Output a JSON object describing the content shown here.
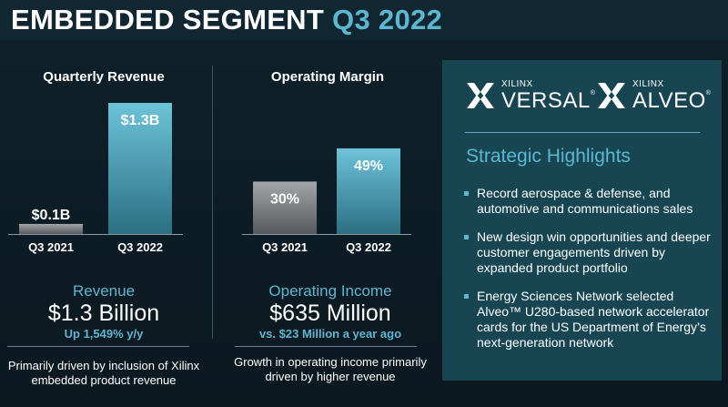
{
  "title": {
    "main": "EMBEDDED SEGMENT",
    "accent": "Q3 2022"
  },
  "colors": {
    "accent": "#5bb8d0",
    "bar_prior": "#8a8e92",
    "bar_current": "#5bb8d0",
    "panel": "#174552"
  },
  "chart_data": [
    {
      "type": "bar",
      "title": "Quarterly Revenue",
      "categories": [
        "Q3 2021",
        "Q3 2022"
      ],
      "values": [
        0.1,
        1.3
      ],
      "data_labels": [
        "$0.1B",
        "$1.3B"
      ],
      "unit": "$B",
      "ylim": [
        0,
        1.3
      ],
      "grid": false,
      "legend": "none"
    },
    {
      "type": "bar",
      "title": "Operating Margin",
      "categories": [
        "Q3 2021",
        "Q3 2022"
      ],
      "values": [
        30,
        49
      ],
      "data_labels": [
        "30%",
        "49%"
      ],
      "unit": "%",
      "ylim": [
        0,
        75
      ],
      "grid": false,
      "legend": "none"
    }
  ],
  "revenue": {
    "label": "Revenue",
    "value": "$1.3 Billion",
    "sub": "Up 1,549% y/y",
    "note": "Primarily driven by inclusion of Xilinx embedded product revenue"
  },
  "operating_income": {
    "label": "Operating Income",
    "value": "$635 Million",
    "sub": "vs. $23 Million a year ago",
    "note": "Growth in operating income primarily driven by higher revenue"
  },
  "logos": [
    {
      "brand": "XILINX",
      "name": "VERSAL",
      "icon": "xilinx-x-icon"
    },
    {
      "brand": "XILINX",
      "name": "ALVEO",
      "icon": "xilinx-x-icon"
    }
  ],
  "highlights": {
    "title": "Strategic Highlights",
    "items": [
      "Record aerospace & defense, and automotive and communications sales",
      "New design win opportunities and deeper customer engagements driven by expanded product portfolio",
      "Energy Sciences Network selected Alveo™ U280-based network accelerator cards for the US Department of Energy’s next-generation network"
    ]
  }
}
